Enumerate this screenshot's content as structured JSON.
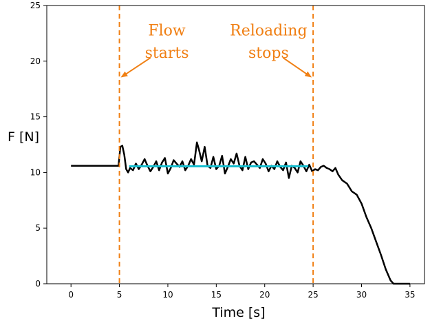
{
  "chart_data": {
    "type": "line",
    "xlabel": "Time [s]",
    "ylabel": "F [N]",
    "xlim": [
      -2.5,
      36.5
    ],
    "ylim": [
      0,
      25
    ],
    "xticks": [
      0,
      5,
      10,
      15,
      20,
      25,
      30,
      35
    ],
    "yticks": [
      0,
      5,
      10,
      15,
      20,
      25
    ],
    "grid": false,
    "colors": {
      "force": "#000000",
      "mean": "#17becf",
      "markers": "#f07f13"
    },
    "series": [
      {
        "x": [
          0,
          1,
          2,
          3,
          4,
          4.9,
          5.1,
          5.3,
          5.5,
          5.7,
          5.9,
          6.1,
          6.4,
          6.7,
          7.0,
          7.3,
          7.6,
          7.9,
          8.2,
          8.5,
          8.8,
          9.1,
          9.4,
          9.7,
          10.0,
          10.3,
          10.6,
          10.9,
          11.2,
          11.5,
          11.8,
          12.1,
          12.4,
          12.7,
          13.0,
          13.2,
          13.5,
          13.8,
          14.1,
          14.4,
          14.7,
          15.0,
          15.3,
          15.6,
          15.9,
          16.2,
          16.5,
          16.8,
          17.1,
          17.4,
          17.7,
          18.0,
          18.3,
          18.6,
          18.9,
          19.2,
          19.5,
          19.8,
          20.1,
          20.4,
          20.7,
          21.0,
          21.3,
          21.6,
          21.9,
          22.2,
          22.5,
          22.8,
          23.1,
          23.4,
          23.7,
          24.0,
          24.3,
          24.6,
          24.9,
          25.2,
          25.5,
          25.8,
          26.1,
          26.4,
          26.7,
          27.0,
          27.3,
          27.6,
          28.0,
          28.5,
          29.0,
          29.5,
          30.0,
          30.5,
          31.0,
          31.5,
          32.0,
          32.5,
          33.0,
          33.3,
          34.0,
          35.0
        ],
        "y": [
          10.6,
          10.6,
          10.6,
          10.6,
          10.6,
          10.6,
          12.3,
          12.4,
          11.6,
          10.3,
          10.0,
          10.4,
          10.2,
          10.8,
          10.3,
          10.7,
          11.2,
          10.6,
          10.1,
          10.5,
          11.0,
          10.2,
          10.9,
          11.3,
          9.9,
          10.4,
          11.1,
          10.8,
          10.5,
          11.0,
          10.2,
          10.6,
          11.2,
          10.7,
          12.7,
          12.1,
          11.0,
          12.3,
          10.6,
          10.4,
          11.4,
          10.3,
          10.6,
          11.5,
          9.9,
          10.5,
          11.2,
          10.8,
          11.7,
          10.6,
          10.2,
          11.4,
          10.3,
          10.9,
          11.0,
          10.7,
          10.4,
          11.2,
          10.8,
          10.1,
          10.6,
          10.3,
          11.0,
          10.5,
          10.2,
          10.9,
          9.5,
          10.6,
          10.4,
          10.0,
          11.0,
          10.6,
          10.1,
          10.7,
          10.1,
          10.3,
          10.2,
          10.5,
          10.6,
          10.4,
          10.3,
          10.1,
          10.4,
          9.8,
          9.3,
          9.0,
          8.3,
          8.0,
          7.2,
          6.0,
          5.0,
          3.8,
          2.6,
          1.3,
          0.3,
          0.0,
          0.0,
          0.0
        ]
      },
      {
        "x": [
          6.0,
          24.5
        ],
        "y": [
          10.55,
          10.55
        ]
      }
    ],
    "vlines": [
      5,
      25
    ],
    "annotations": [
      {
        "text": "Flow",
        "x": 9.9,
        "y": 22.3
      },
      {
        "text": "starts",
        "x": 9.9,
        "y": 20.3
      },
      {
        "text": "Reloading",
        "x": 20.4,
        "y": 22.3
      },
      {
        "text": "stops",
        "x": 20.4,
        "y": 20.3
      }
    ],
    "arrows": [
      {
        "from": [
          8.2,
          20.3
        ],
        "to": [
          5.25,
          18.6
        ]
      },
      {
        "from": [
          21.9,
          20.3
        ],
        "to": [
          24.75,
          18.6
        ]
      }
    ]
  }
}
